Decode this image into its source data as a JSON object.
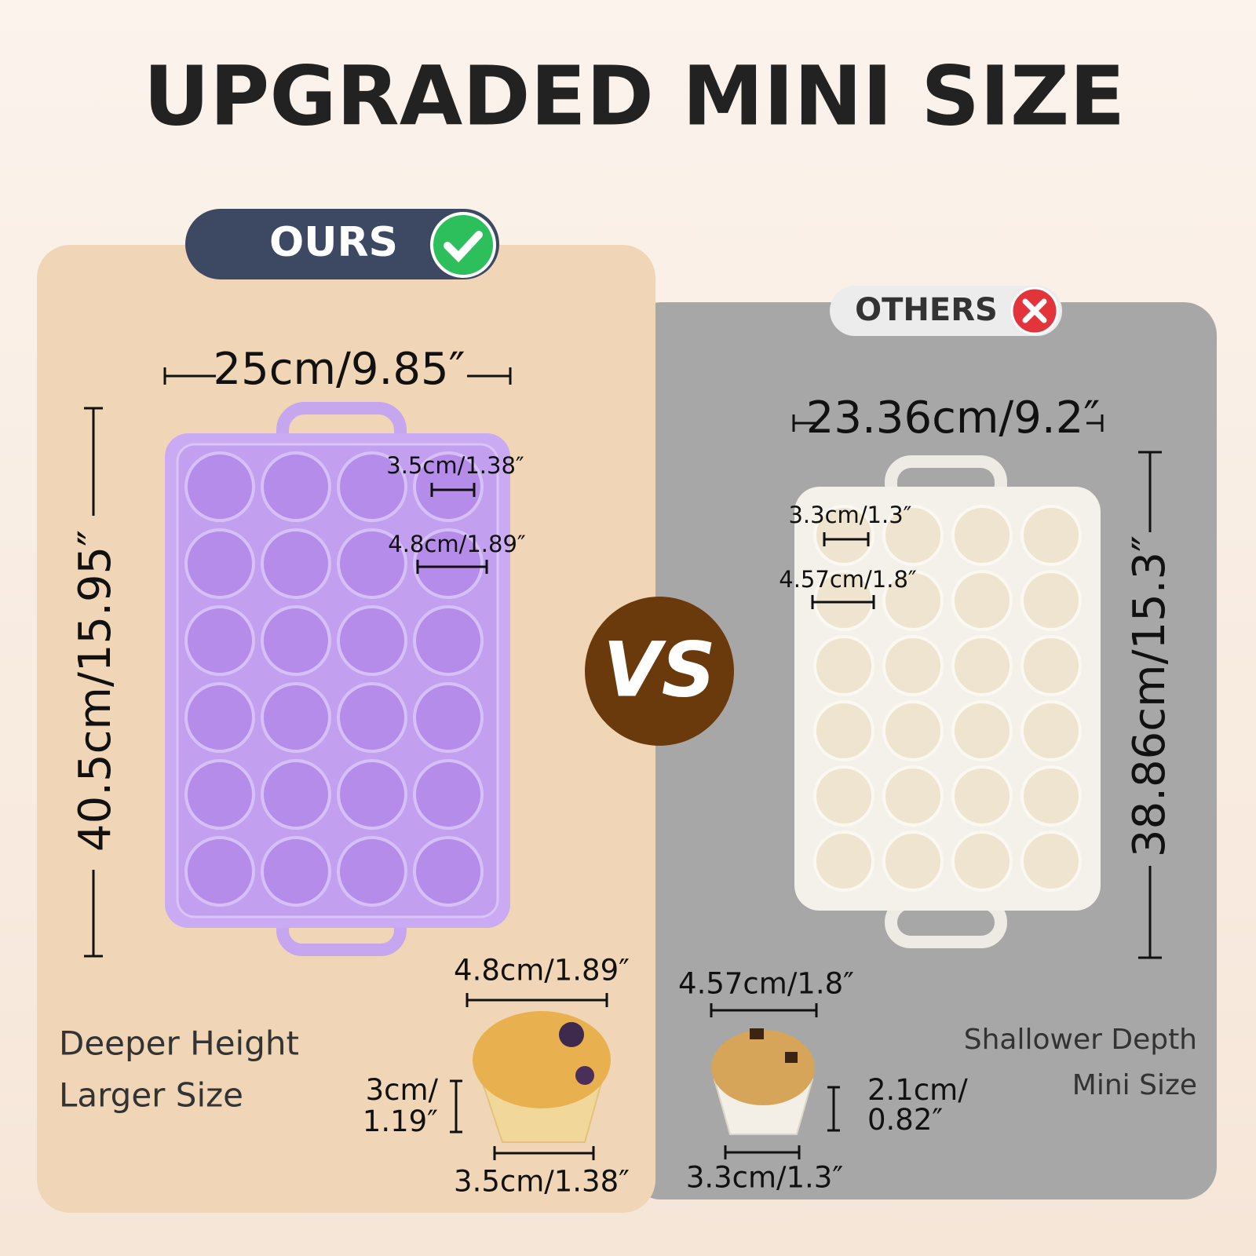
{
  "title": "UPGRADED MINI SIZE",
  "vs": "VS",
  "ours": {
    "badge": "OURS",
    "width": "25cm/9.85″",
    "height": "40.5cm/15.95″",
    "cup_bottom": "3.5cm/1.38″",
    "cup_top": "4.8cm/1.89″",
    "muffin_top": "4.8cm/1.89″",
    "muffin_height": [
      "3cm/",
      "1.19″"
    ],
    "muffin_bottom": "3.5cm/1.38″",
    "features": [
      "Deeper Height",
      "Larger Size"
    ]
  },
  "others": {
    "badge": "OTHERS",
    "width": "23.36cm/9.2″",
    "height": "38.86cm/15.3″",
    "cup_bottom": "3.3cm/1.3″",
    "cup_top": "4.57cm/1.8″",
    "muffin_top": "4.57cm/1.8″",
    "muffin_height": [
      "2.1cm/",
      "0.82″"
    ],
    "muffin_bottom": "3.3cm/1.3″",
    "features": [
      "Shallower Depth",
      "Mini Size"
    ]
  }
}
